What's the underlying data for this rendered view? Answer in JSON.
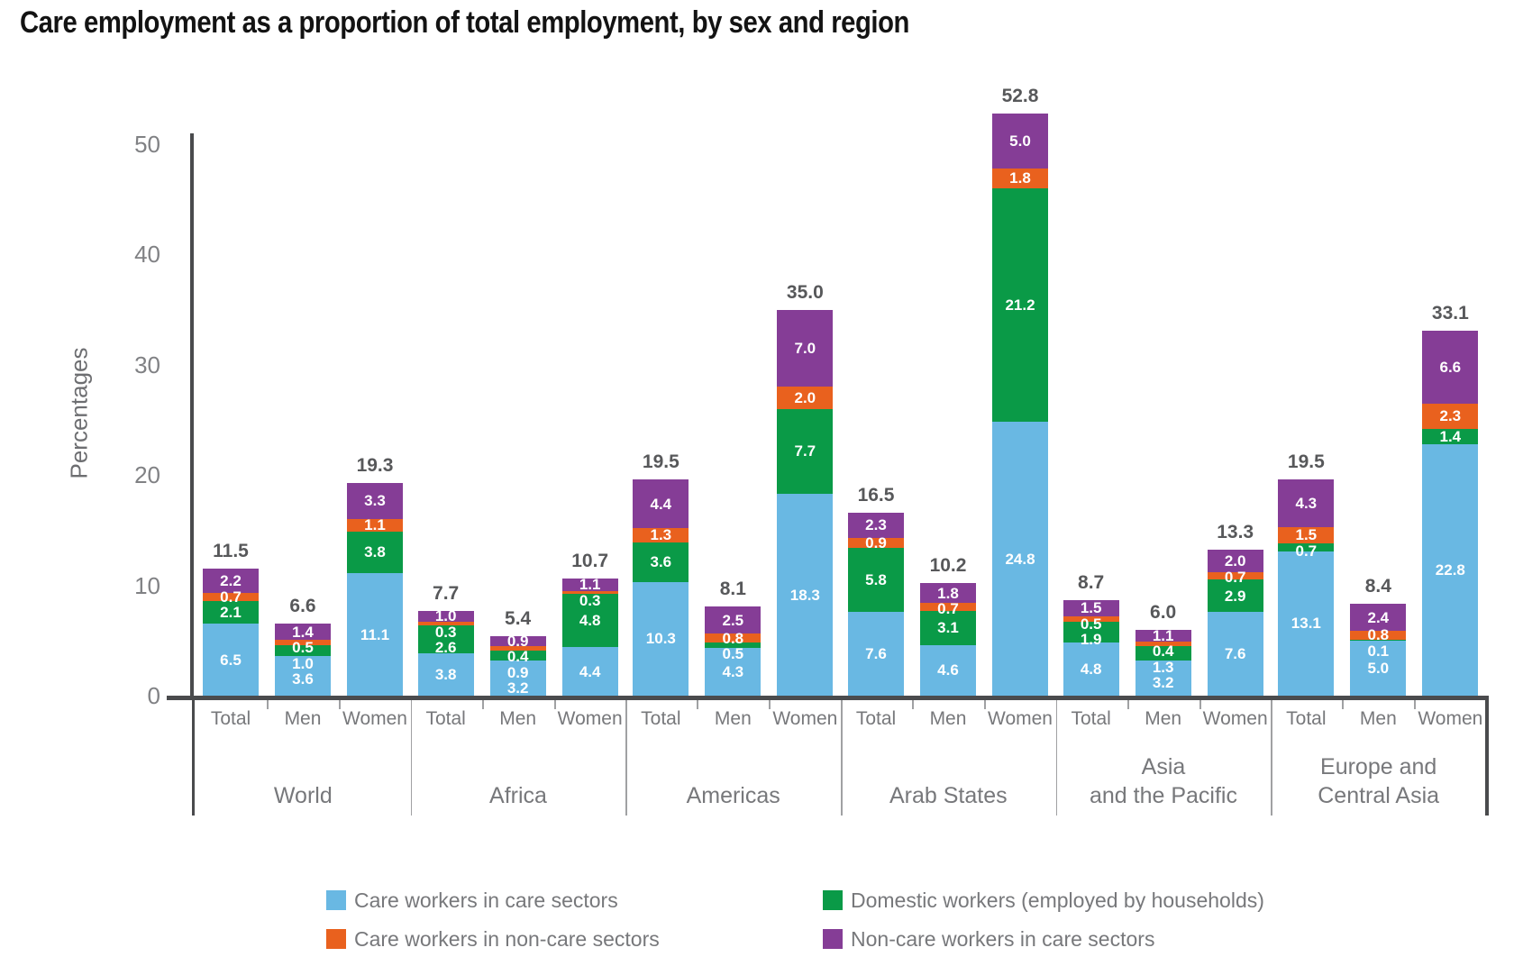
{
  "title": "Care employment as a proportion of total employment, by sex and region",
  "chart_data": {
    "type": "bar",
    "stacked": true,
    "ylabel": "Percentages",
    "ylim": [
      0,
      50
    ],
    "yticks": [
      0,
      10,
      20,
      30,
      40,
      50
    ],
    "grid": "off",
    "legend_position": "bottom",
    "bar_categories": [
      "Total",
      "Men",
      "Women"
    ],
    "stack_order_note": "values arrays are bottom-to-top per bar",
    "stack": [
      {
        "key": "care_care",
        "label": "Care workers in care sectors",
        "color": "#69b8e3"
      },
      {
        "key": "domestic",
        "label": "Domestic workers (employed by households)",
        "color": "#0a9a47"
      },
      {
        "key": "care_noncare",
        "label": "Care workers in non-care sectors",
        "color": "#e9611e"
      },
      {
        "key": "noncare_care",
        "label": "Non-care workers in care sectors",
        "color": "#853d96"
      }
    ],
    "legend_order": [
      "care_care",
      "care_noncare",
      "domestic",
      "noncare_care"
    ],
    "groups": [
      {
        "region": [
          "World"
        ],
        "bars": [
          {
            "label": "Total",
            "total": 11.5,
            "values": [
              6.5,
              2.1,
              0.7,
              2.2
            ]
          },
          {
            "label": "Men",
            "total": 6.6,
            "values": [
              3.6,
              1.0,
              0.5,
              1.4
            ]
          },
          {
            "label": "Women",
            "total": 19.3,
            "values": [
              11.1,
              3.8,
              1.1,
              3.3
            ]
          }
        ]
      },
      {
        "region": [
          "Africa"
        ],
        "bars": [
          {
            "label": "Total",
            "total": 7.7,
            "values": [
              3.8,
              2.6,
              0.3,
              1.0
            ]
          },
          {
            "label": "Men",
            "total": 5.4,
            "values": [
              3.2,
              0.9,
              0.4,
              0.9
            ]
          },
          {
            "label": "Women",
            "total": 10.7,
            "values": [
              4.4,
              4.8,
              0.3,
              1.1
            ]
          }
        ]
      },
      {
        "region": [
          "Americas"
        ],
        "bars": [
          {
            "label": "Total",
            "total": 19.5,
            "values": [
              10.3,
              3.6,
              1.3,
              4.4
            ]
          },
          {
            "label": "Men",
            "total": 8.1,
            "values": [
              4.3,
              0.5,
              0.8,
              2.5
            ]
          },
          {
            "label": "Women",
            "total": 35.0,
            "values": [
              18.3,
              7.7,
              2.0,
              7.0
            ]
          }
        ]
      },
      {
        "region": [
          "Arab States"
        ],
        "bars": [
          {
            "label": "Total",
            "total": 16.5,
            "values": [
              7.6,
              5.8,
              0.9,
              2.3
            ]
          },
          {
            "label": "Men",
            "total": 10.2,
            "values": [
              4.6,
              3.1,
              0.7,
              1.8
            ]
          },
          {
            "label": "Women",
            "total": 52.8,
            "values": [
              24.8,
              21.2,
              1.8,
              5.0
            ]
          }
        ]
      },
      {
        "region": [
          "Asia",
          "and the Pacific"
        ],
        "bars": [
          {
            "label": "Total",
            "total": 8.7,
            "values": [
              4.8,
              1.9,
              0.5,
              1.5
            ]
          },
          {
            "label": "Men",
            "total": 6.0,
            "values": [
              3.2,
              1.3,
              0.4,
              1.1
            ]
          },
          {
            "label": "Women",
            "total": 13.3,
            "values": [
              7.6,
              2.9,
              0.7,
              2.0
            ]
          }
        ]
      },
      {
        "region": [
          "Europe and",
          "Central Asia"
        ],
        "bars": [
          {
            "label": "Total",
            "total": 19.5,
            "values": [
              13.1,
              0.7,
              1.5,
              4.3
            ]
          },
          {
            "label": "Men",
            "total": 8.4,
            "values": [
              5.0,
              0.1,
              0.8,
              2.4
            ]
          },
          {
            "label": "Women",
            "total": 33.1,
            "values": [
              22.8,
              1.4,
              2.3,
              6.6
            ]
          }
        ]
      }
    ],
    "colors": {
      "axis": "#4a4b4d",
      "divider": "#a0a1a3",
      "tick_text": "#808184",
      "label_text": "#77787b",
      "total_text": "#57585a"
    }
  }
}
